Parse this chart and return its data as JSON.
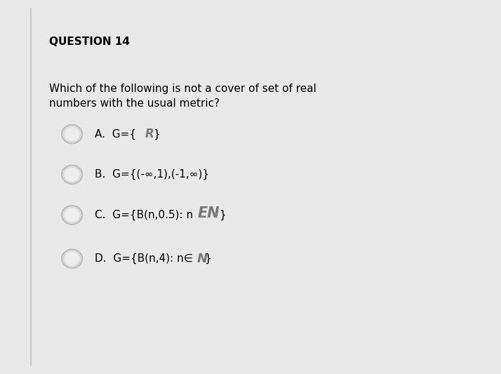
{
  "title": "QUESTION 14",
  "question_line1": "Which of the following is not a cover of set of real",
  "question_line2": "numbers with the usual metric?",
  "options_text": [
    "A.  G={R}",
    "B.  G={(-∞,1),(-1,∞)}",
    "C.  G={B(n,0.5): n∈N}",
    "D.  G={B(n,4): n∈N}"
  ],
  "bg_color": "#e8e8e8",
  "panel_color": "#ffffff",
  "left_bar_color": "#c8c8c8",
  "title_fontsize": 11,
  "question_fontsize": 11,
  "option_fontsize": 11
}
